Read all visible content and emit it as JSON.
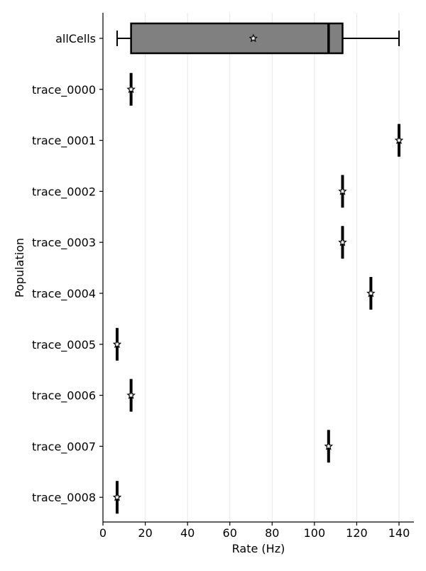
{
  "chart_data": {
    "type": "boxplot",
    "xlabel": "Rate (Hz)",
    "ylabel": "Population",
    "xlim": [
      0,
      145
    ],
    "xticks": [
      0,
      20,
      40,
      60,
      80,
      100,
      120,
      140
    ],
    "grid": "x",
    "categories": [
      "allCells",
      "trace_0000",
      "trace_0001",
      "trace_0002",
      "trace_0003",
      "trace_0004",
      "trace_0005",
      "trace_0006",
      "trace_0007",
      "trace_0008"
    ],
    "boxes": [
      {
        "label": "allCells",
        "whisker_low": 6.7,
        "q1": 13.3,
        "median": 106.7,
        "q3": 113.3,
        "whisker_high": 140.0,
        "mean": 71.1
      },
      {
        "label": "trace_0000",
        "whisker_low": 13.3,
        "q1": 13.3,
        "median": 13.3,
        "q3": 13.3,
        "whisker_high": 13.3,
        "mean": 13.3
      },
      {
        "label": "trace_0001",
        "whisker_low": 140.0,
        "q1": 140.0,
        "median": 140.0,
        "q3": 140.0,
        "whisker_high": 140.0,
        "mean": 140.0
      },
      {
        "label": "trace_0002",
        "whisker_low": 113.3,
        "q1": 113.3,
        "median": 113.3,
        "q3": 113.3,
        "whisker_high": 113.3,
        "mean": 113.3
      },
      {
        "label": "trace_0003",
        "whisker_low": 113.3,
        "q1": 113.3,
        "median": 113.3,
        "q3": 113.3,
        "whisker_high": 113.3,
        "mean": 113.3
      },
      {
        "label": "trace_0004",
        "whisker_low": 126.7,
        "q1": 126.7,
        "median": 126.7,
        "q3": 126.7,
        "whisker_high": 126.7,
        "mean": 126.7
      },
      {
        "label": "trace_0005",
        "whisker_low": 6.7,
        "q1": 6.7,
        "median": 6.7,
        "q3": 6.7,
        "whisker_high": 6.7,
        "mean": 6.7
      },
      {
        "label": "trace_0006",
        "whisker_low": 13.3,
        "q1": 13.3,
        "median": 13.3,
        "q3": 13.3,
        "whisker_high": 13.3,
        "mean": 13.3
      },
      {
        "label": "trace_0007",
        "whisker_low": 106.7,
        "q1": 106.7,
        "median": 106.7,
        "q3": 106.7,
        "whisker_high": 106.7,
        "mean": 106.7
      },
      {
        "label": "trace_0008",
        "whisker_low": 6.7,
        "q1": 6.7,
        "median": 6.7,
        "q3": 6.7,
        "whisker_high": 6.7,
        "mean": 6.7
      }
    ],
    "colors": {
      "box_fill": "#808080",
      "box_edge": "#000000",
      "grid": "#e6e6e6",
      "mean_marker_fill": "#ffffff",
      "mean_marker_edge": "#000000"
    }
  }
}
